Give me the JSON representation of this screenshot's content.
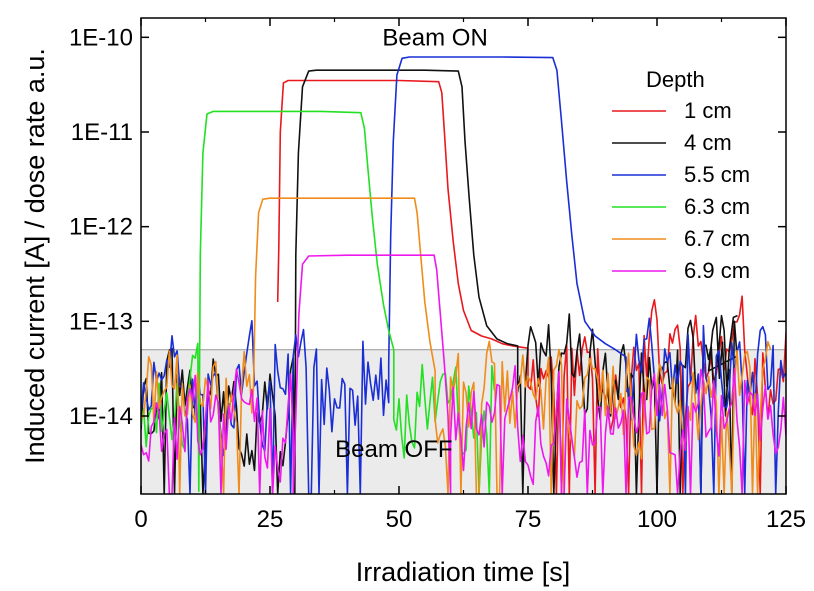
{
  "chart_data": {
    "type": "line",
    "title": "",
    "xlabel": "Irradiation time [s]",
    "ylabel": "Induced current [A] / dose rate a.u.",
    "xlim": [
      0,
      125
    ],
    "ylim": [
      1.5e-15,
      1.6e-10
    ],
    "yscale": "log",
    "xticks": [
      0,
      25,
      50,
      75,
      100,
      125
    ],
    "xtick_labels": [
      "0",
      "25",
      "50",
      "75",
      "100",
      "125"
    ],
    "yticks": [
      1e-14,
      1e-13,
      1e-12,
      1e-11,
      1e-10
    ],
    "ytick_labels": [
      "1E-14",
      "1E-13",
      "1E-12",
      "1E-11",
      "1E-10"
    ],
    "grid": false,
    "background_band": {
      "y_from": 1.5e-15,
      "y_to": 5e-14,
      "color": "#ebebeb"
    },
    "annotations": [
      {
        "text": "Beam ON",
        "x": 57,
        "y": 1e-10
      },
      {
        "text": "Beam OFF",
        "x": 49,
        "y": 4.5e-15
      }
    ],
    "legend": {
      "title": "Depth",
      "position": "top-right"
    },
    "series": [
      {
        "name": "1 cm",
        "color": "#e8181c",
        "on_points": [
          [
            26.5,
            1.6e-13
          ],
          [
            26.7,
            6e-13
          ],
          [
            27.0,
            1e-11
          ],
          [
            27.6,
            3.3e-11
          ],
          [
            28.5,
            3.5e-11
          ],
          [
            40,
            3.5e-11
          ],
          [
            50,
            3.5e-11
          ],
          [
            57.7,
            3.4e-11
          ],
          [
            58.3,
            2.6e-11
          ],
          [
            58.8,
            1e-11
          ],
          [
            59.5,
            2.5e-12
          ],
          [
            60.5,
            7e-13
          ],
          [
            61.5,
            2.5e-13
          ],
          [
            62.5,
            1.3e-13
          ],
          [
            64,
            8e-14
          ],
          [
            66,
            7e-14
          ],
          [
            68,
            6.5e-14
          ],
          [
            70,
            5.8e-14
          ],
          [
            72,
            5.5e-14
          ],
          [
            74,
            5.3e-14
          ],
          [
            75,
            5.2e-14
          ]
        ],
        "noise_from": 75,
        "noise_to": 125,
        "noise_level": 3.5e-14,
        "seed": 11
      },
      {
        "name": "4 cm",
        "color": "#111111",
        "noise_pre_from": 0,
        "noise_pre_to": 29.8,
        "noise_pre_level": 1.2e-14,
        "seed_pre": 41,
        "on_points": [
          [
            29.8,
            1.5e-15
          ],
          [
            30.0,
            5e-13
          ],
          [
            30.5,
            6e-12
          ],
          [
            31.3,
            3e-11
          ],
          [
            32.5,
            4.4e-11
          ],
          [
            34,
            4.5e-11
          ],
          [
            45,
            4.5e-11
          ],
          [
            55,
            4.5e-11
          ],
          [
            61.5,
            4.4e-11
          ],
          [
            62.2,
            3e-11
          ],
          [
            62.8,
            8e-12
          ],
          [
            63.6,
            2e-12
          ],
          [
            64.5,
            5e-13
          ],
          [
            65.5,
            1.8e-13
          ],
          [
            67,
            9e-14
          ],
          [
            69,
            6.5e-14
          ],
          [
            71,
            5.8e-14
          ],
          [
            73,
            5.5e-14
          ]
        ],
        "noise_from": 73,
        "noise_to": 115.5,
        "noise_level": 3e-14,
        "seed": 42,
        "end_points": [
          [
            110,
            3e-14
          ],
          [
            110.8,
            8e-14
          ],
          [
            111.5,
            1.1e-13
          ],
          [
            112.1,
            2.5e-14
          ],
          [
            112.7,
            6e-14
          ],
          [
            113.3,
            1e-14
          ],
          [
            114,
            5e-14
          ],
          [
            114.8,
            1.1e-13
          ],
          [
            115.6,
            1.15e-13
          ]
        ]
      },
      {
        "name": "5.5 cm",
        "color": "#1a2ed6",
        "noise_pre_from": 0,
        "noise_pre_to": 48,
        "noise_pre_level": 1.8e-14,
        "seed_pre": 51,
        "on_points": [
          [
            48.0,
            3.5e-14
          ],
          [
            48.4,
            8e-13
          ],
          [
            48.9,
            8e-12
          ],
          [
            49.6,
            4e-11
          ],
          [
            50.6,
            6e-11
          ],
          [
            52,
            6.2e-11
          ],
          [
            60,
            6.2e-11
          ],
          [
            70,
            6.2e-11
          ],
          [
            79.8,
            6.1e-11
          ],
          [
            80.6,
            4.5e-11
          ],
          [
            81.5,
            1.3e-11
          ],
          [
            82.5,
            3e-12
          ],
          [
            83.5,
            8e-13
          ],
          [
            84.5,
            2.5e-13
          ],
          [
            86,
            1e-13
          ],
          [
            88,
            7e-14
          ],
          [
            90,
            5.8e-14
          ],
          [
            92,
            5e-14
          ],
          [
            94,
            4.2e-14
          ]
        ],
        "noise_from": 94,
        "noise_to": 125,
        "noise_level": 3e-14,
        "seed": 52
      },
      {
        "name": "6.3 cm",
        "color": "#22e022",
        "noise_pre_from": 0,
        "noise_pre_to": 11.2,
        "noise_pre_level": 1.3e-14,
        "seed_pre": 61,
        "on_points": [
          [
            11.2,
            1.6e-15
          ],
          [
            11.5,
            5e-13
          ],
          [
            12.0,
            6e-12
          ],
          [
            12.8,
            1.55e-11
          ],
          [
            14,
            1.65e-11
          ],
          [
            25,
            1.65e-11
          ],
          [
            35,
            1.65e-11
          ],
          [
            42.6,
            1.6e-11
          ],
          [
            43.3,
            1.1e-11
          ],
          [
            44,
            4e-12
          ],
          [
            44.8,
            1.3e-12
          ],
          [
            45.8,
            4e-13
          ],
          [
            47,
            1.5e-13
          ],
          [
            48,
            8e-14
          ],
          [
            49,
            5e-14
          ]
        ],
        "noise_from": 49,
        "noise_to": 68.5,
        "noise_level": 1.5e-14,
        "seed": 62
      },
      {
        "name": "6.7 cm",
        "color": "#f08c1c",
        "noise_pre_from": 0,
        "noise_pre_to": 21.8,
        "noise_pre_level": 1.5e-14,
        "seed_pre": 71,
        "on_points": [
          [
            21.8,
            2e-14
          ],
          [
            22.2,
            3e-13
          ],
          [
            22.8,
            1.4e-12
          ],
          [
            23.6,
            1.95e-12
          ],
          [
            25,
            2e-12
          ],
          [
            35,
            2e-12
          ],
          [
            45,
            2e-12
          ],
          [
            53,
            2e-12
          ],
          [
            53.5,
            1.4e-12
          ],
          [
            54.2,
            5e-13
          ],
          [
            55,
            1.6e-13
          ],
          [
            56,
            6e-14
          ],
          [
            57,
            3e-14
          ]
        ],
        "noise_from": 57,
        "noise_to": 122,
        "noise_level": 1.5e-14,
        "seed": 72
      },
      {
        "name": "6.9 cm",
        "color": "#ee18ee",
        "noise_pre_from": 0,
        "noise_pre_to": 29.5,
        "noise_pre_level": 8e-15,
        "seed_pre": 81,
        "on_points": [
          [
            29.5,
            1.5e-15
          ],
          [
            30.0,
            1e-14
          ],
          [
            30.6,
            1.2e-13
          ],
          [
            31.3,
            4e-13
          ],
          [
            32.5,
            4.9e-13
          ],
          [
            40,
            5e-13
          ],
          [
            50,
            5e-13
          ],
          [
            56.8,
            5e-13
          ],
          [
            57.3,
            3.5e-13
          ],
          [
            58,
            1.2e-13
          ],
          [
            58.8,
            3.5e-14
          ],
          [
            59.5,
            1e-14
          ],
          [
            60,
            1.5e-15
          ]
        ],
        "noise_from": 60,
        "noise_to": 125,
        "noise_level": 1e-14,
        "seed": 82
      }
    ]
  }
}
